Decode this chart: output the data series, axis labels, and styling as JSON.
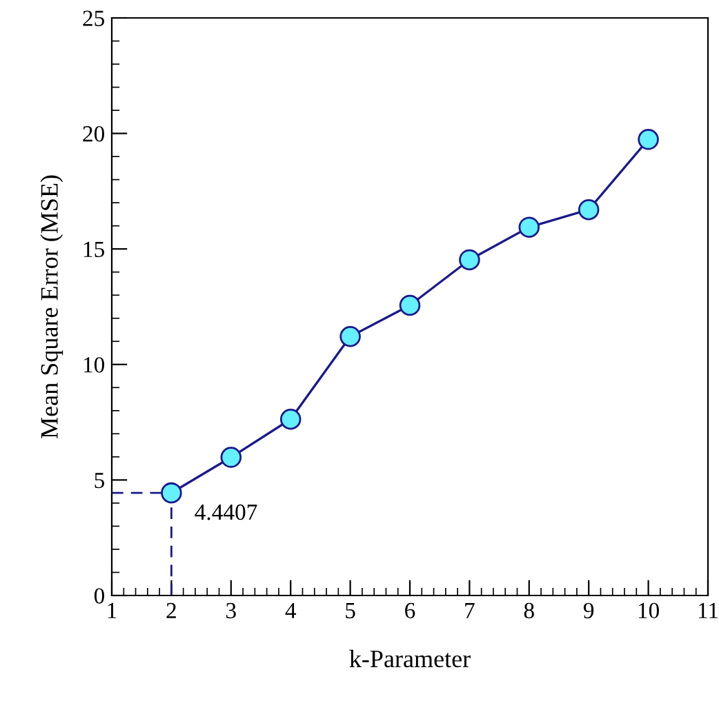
{
  "chart_data": {
    "type": "line",
    "xlabel": "k-Parameter",
    "ylabel": "Mean Square Error (MSE)",
    "x": [
      2,
      3,
      4,
      5,
      6,
      7,
      8,
      9,
      10
    ],
    "series": [
      {
        "color": "#1a1a8c",
        "values": [
          4.4407,
          5.98,
          7.63,
          11.21,
          12.56,
          14.53,
          15.94,
          16.7,
          19.74
        ]
      }
    ],
    "marker": "circle",
    "line_style": "solid",
    "grid": false,
    "xlim": [
      1,
      11
    ],
    "xticks": [
      1,
      2,
      3,
      4,
      5,
      6,
      7,
      8,
      9,
      10,
      11
    ],
    "ylim": [
      0,
      25
    ],
    "yticks": [
      0,
      5,
      10,
      15,
      20,
      25
    ],
    "annotations": [
      {
        "text": "4.4407",
        "x": 2,
        "y": 4.4407
      }
    ]
  }
}
